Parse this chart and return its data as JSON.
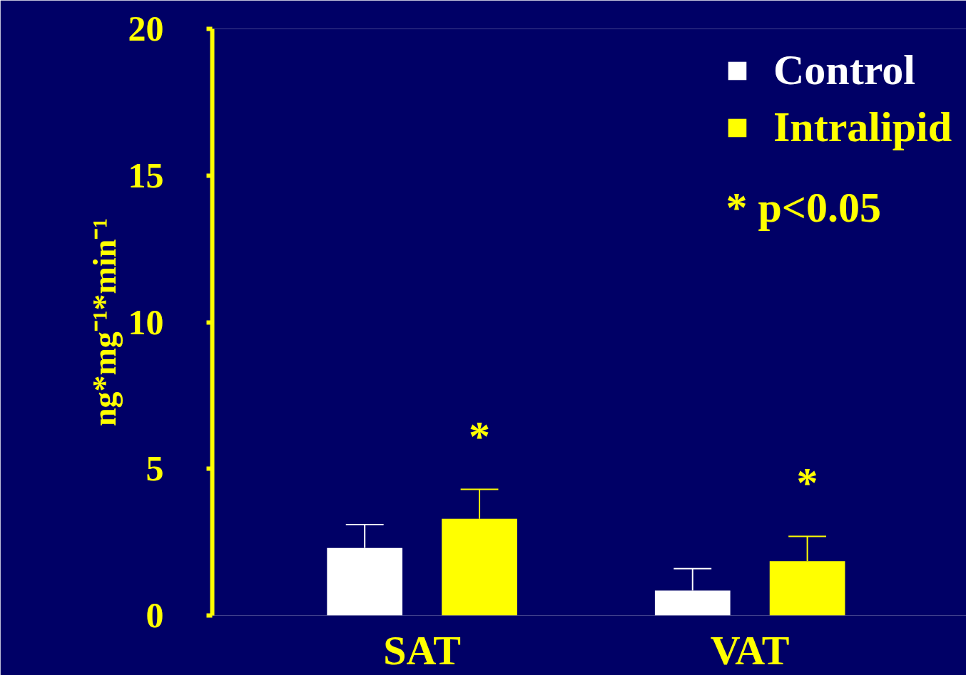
{
  "chart_data": {
    "type": "bar",
    "ylabel": "ng*mg⁻¹*min⁻¹",
    "categories": [
      "SAT",
      "VAT"
    ],
    "series": [
      {
        "name": "Control",
        "color": "#ffffff",
        "values": [
          2.3,
          0.85
        ],
        "errors": [
          [
            2.3,
            3.1
          ],
          [
            0.85,
            1.6
          ]
        ]
      },
      {
        "name": "Intralipid",
        "color": "#ffff00",
        "values": [
          3.3,
          1.85
        ],
        "errors": [
          [
            3.3,
            4.3
          ],
          [
            1.85,
            2.7
          ]
        ]
      }
    ],
    "ylim": [
      0,
      20
    ],
    "yticks": [
      0,
      5,
      10,
      15,
      20
    ],
    "grid": false,
    "legend": "top right",
    "annotations": [
      "*",
      "*",
      "* p<0.05"
    ]
  }
}
